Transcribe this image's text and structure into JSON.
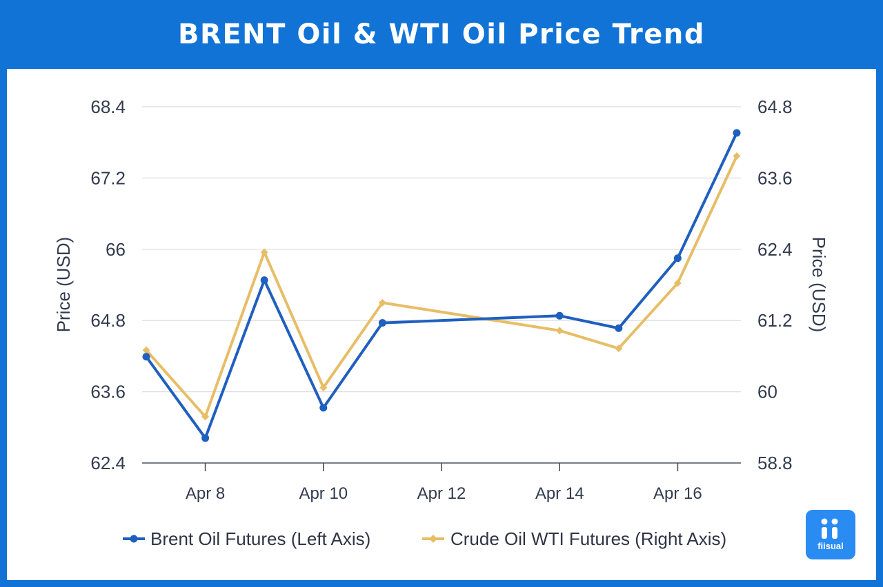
{
  "header": {
    "title": "BRENT Oil & WTI Oil Price Trend"
  },
  "logo": {
    "text": "fiisual"
  },
  "colors": {
    "frame": "#1173d6",
    "brent": "#1f5fbf",
    "wti": "#e7bd67",
    "grid": "#d9dce3"
  },
  "chart_data": {
    "type": "line",
    "title": "BRENT Oil & WTI Oil Price Trend",
    "x": [
      "Apr 7",
      "Apr 8",
      "Apr 9",
      "Apr 10",
      "Apr 11",
      "Apr 14",
      "Apr 15",
      "Apr 16",
      "Apr 17"
    ],
    "x_day": [
      7,
      8,
      9,
      10,
      11,
      14,
      15,
      16,
      17
    ],
    "xticks": [
      "Apr 8",
      "Apr 10",
      "Apr 12",
      "Apr 14",
      "Apr 16"
    ],
    "xticks_day": [
      8,
      10,
      12,
      14,
      16
    ],
    "xlim_day": [
      7,
      17
    ],
    "y_left": {
      "label": "Price (USD)",
      "ylim": [
        62.4,
        68.4
      ],
      "ticks": [
        "68.4",
        "67.2",
        "66",
        "64.8",
        "63.6",
        "62.4"
      ]
    },
    "y_right": {
      "label": "Price (USD)",
      "ylim": [
        58.8,
        64.8
      ],
      "ticks": [
        "64.8",
        "63.6",
        "62.4",
        "61.2",
        "60",
        "58.8"
      ]
    },
    "series": [
      {
        "name": "Brent Oil Futures (Left Axis)",
        "axis": "left",
        "values": [
          64.19,
          62.82,
          65.48,
          63.33,
          64.76,
          64.88,
          64.67,
          65.85,
          67.96
        ]
      },
      {
        "name": "Crude Oil WTI Futures (Right Axis)",
        "axis": "right",
        "values": [
          60.7,
          59.58,
          62.35,
          60.07,
          61.5,
          61.03,
          60.73,
          61.83,
          63.97
        ]
      }
    ],
    "grid": true,
    "legend": "bottom"
  }
}
